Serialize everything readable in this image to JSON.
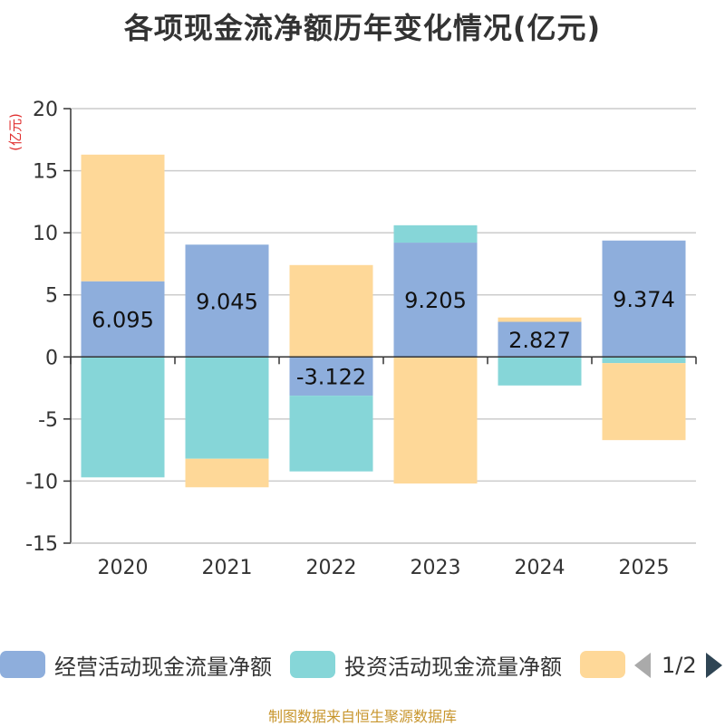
{
  "title": "各项现金流净额历年变化情况(亿元)",
  "unit_label": "(亿元)",
  "footer": "制图数据来自恒生聚源数据库",
  "legend": {
    "items": [
      {
        "label": "经营活动现金流量净额",
        "color": "#8eaedc"
      },
      {
        "label": "投资活动现金流量净额",
        "color": "#86d6d8"
      },
      {
        "label": "",
        "color": "#fed898"
      }
    ],
    "page_indicator": "1/2"
  },
  "chart_data": {
    "type": "bar",
    "stacked": true,
    "title": "各项现金流净额历年变化情况(亿元)",
    "xlabel": "",
    "ylabel": "(亿元)",
    "categories": [
      "2020",
      "2021",
      "2022",
      "2023",
      "2024",
      "2025"
    ],
    "ylim": [
      -15,
      20
    ],
    "yticks": [
      20,
      15,
      10,
      5,
      0,
      -5,
      -10,
      -15
    ],
    "grid": true,
    "legend_position": "bottom",
    "series": [
      {
        "name": "经营活动现金流量净额",
        "color": "#8eaedc",
        "show_labels": true,
        "values": [
          6.095,
          9.045,
          -3.122,
          9.205,
          2.827,
          9.374
        ],
        "labels": [
          "6.095",
          "9.045",
          "-3.122",
          "9.205",
          "2.827",
          "9.374"
        ]
      },
      {
        "name": "投资活动现金流量净额",
        "color": "#86d6d8",
        "show_labels": false,
        "values": [
          -9.7,
          -8.2,
          -6.1,
          1.4,
          -2.3,
          -0.5
        ]
      },
      {
        "name": "",
        "color": "#fed898",
        "show_labels": false,
        "values": [
          10.2,
          -2.3,
          7.4,
          -10.2,
          0.35,
          -6.2
        ]
      }
    ]
  }
}
